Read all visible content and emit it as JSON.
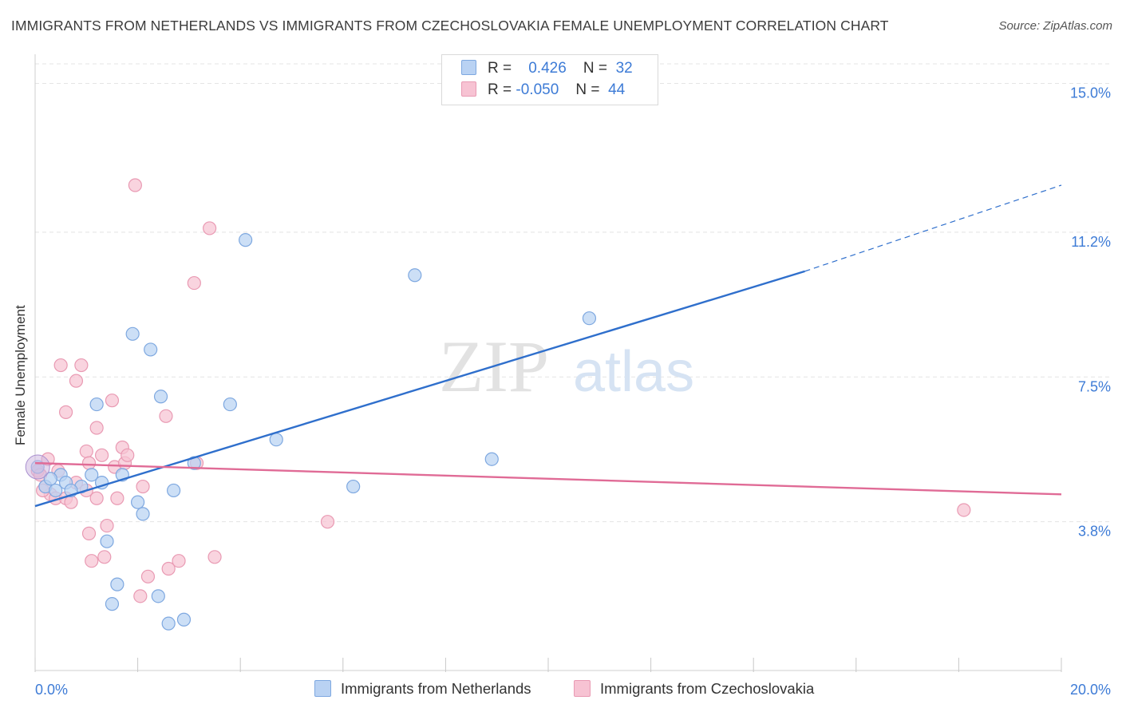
{
  "header": {
    "title": "IMMIGRANTS FROM NETHERLANDS VS IMMIGRANTS FROM CZECHOSLOVAKIA FEMALE UNEMPLOYMENT CORRELATION CHART",
    "source": "Source: ZipAtlas.com"
  },
  "watermark": {
    "zip": "ZIP",
    "atlas": "atlas"
  },
  "legend": {
    "r_label": "R =",
    "n_label": "N =",
    "rows": [
      {
        "r": "0.426",
        "n": "32",
        "color": "#a9c6ee"
      },
      {
        "r": "-0.050",
        "n": "44",
        "color": "#f4b8cb"
      }
    ]
  },
  "colors": {
    "netherlands_fill": "#b9d2f3",
    "netherlands_stroke": "#7ea8e0",
    "netherlands_line": "#2f6fcc",
    "czech_fill": "#f7c3d3",
    "czech_stroke": "#e99ab3",
    "czech_line": "#e06b96",
    "tick_text": "#3d7bd6",
    "grid": "#e4e4e4"
  },
  "chart_data": {
    "type": "scatter",
    "title": "IMMIGRANTS FROM NETHERLANDS VS IMMIGRANTS FROM CZECHOSLOVAKIA FEMALE UNEMPLOYMENT CORRELATION CHART",
    "xlabel": "",
    "ylabel": "Female Unemployment",
    "xlim": [
      0,
      20
    ],
    "ylim": [
      0,
      15.5
    ],
    "x_tick_labels": [
      {
        "value": 0,
        "label": "0.0%"
      },
      {
        "value": 20,
        "label": "20.0%"
      }
    ],
    "y_tick_labels": [
      {
        "value": 3.8,
        "label": "3.8%"
      },
      {
        "value": 7.5,
        "label": "7.5%"
      },
      {
        "value": 11.2,
        "label": "11.2%"
      },
      {
        "value": 15.0,
        "label": "15.0%"
      }
    ],
    "grid": "horizontal dashed",
    "legend_position": "top-center",
    "series": [
      {
        "name": "Immigrants from Netherlands",
        "points": [
          [
            0.05,
            5.2
          ],
          [
            0.2,
            4.7
          ],
          [
            0.4,
            4.6
          ],
          [
            0.5,
            5.0
          ],
          [
            0.6,
            4.8
          ],
          [
            0.9,
            4.7
          ],
          [
            1.1,
            5.0
          ],
          [
            1.2,
            6.8
          ],
          [
            1.3,
            4.8
          ],
          [
            1.4,
            3.3
          ],
          [
            1.6,
            2.2
          ],
          [
            1.5,
            1.7
          ],
          [
            1.7,
            5.0
          ],
          [
            1.9,
            8.6
          ],
          [
            2.0,
            4.3
          ],
          [
            2.1,
            4.0
          ],
          [
            2.25,
            8.2
          ],
          [
            2.4,
            1.9
          ],
          [
            2.45,
            7.0
          ],
          [
            2.6,
            1.2
          ],
          [
            2.7,
            4.6
          ],
          [
            2.9,
            1.3
          ],
          [
            3.1,
            5.3
          ],
          [
            3.8,
            6.8
          ],
          [
            4.1,
            11.0
          ],
          [
            4.7,
            5.9
          ],
          [
            6.2,
            4.7
          ],
          [
            7.4,
            10.1
          ],
          [
            8.9,
            5.4
          ],
          [
            10.8,
            9.0
          ],
          [
            0.3,
            4.9
          ],
          [
            0.7,
            4.6
          ]
        ],
        "trend": {
          "x": [
            0,
            15
          ],
          "y": [
            4.2,
            10.2
          ],
          "dashed_extension_to": [
            20,
            12.4
          ]
        }
      },
      {
        "name": "Immigrants from Czechoslovakia",
        "points": [
          [
            0.05,
            5.1
          ],
          [
            0.1,
            5.0
          ],
          [
            0.2,
            4.7
          ],
          [
            0.3,
            4.5
          ],
          [
            0.4,
            4.4
          ],
          [
            0.45,
            5.1
          ],
          [
            0.5,
            7.8
          ],
          [
            0.6,
            4.4
          ],
          [
            0.6,
            6.6
          ],
          [
            0.7,
            4.3
          ],
          [
            0.8,
            7.4
          ],
          [
            0.8,
            4.8
          ],
          [
            0.9,
            7.8
          ],
          [
            1.0,
            5.6
          ],
          [
            1.0,
            4.6
          ],
          [
            1.05,
            5.3
          ],
          [
            1.05,
            3.5
          ],
          [
            1.1,
            2.8
          ],
          [
            1.2,
            4.4
          ],
          [
            1.2,
            6.2
          ],
          [
            1.3,
            5.5
          ],
          [
            1.35,
            2.9
          ],
          [
            1.4,
            3.7
          ],
          [
            1.5,
            6.9
          ],
          [
            1.55,
            5.2
          ],
          [
            1.6,
            4.4
          ],
          [
            1.7,
            5.7
          ],
          [
            1.75,
            5.3
          ],
          [
            1.8,
            5.5
          ],
          [
            1.95,
            12.4
          ],
          [
            2.05,
            1.9
          ],
          [
            2.1,
            4.7
          ],
          [
            2.2,
            2.4
          ],
          [
            2.55,
            6.5
          ],
          [
            2.6,
            2.6
          ],
          [
            2.8,
            2.8
          ],
          [
            3.1,
            9.9
          ],
          [
            3.15,
            5.3
          ],
          [
            3.4,
            11.3
          ],
          [
            3.5,
            2.9
          ],
          [
            5.7,
            3.8
          ],
          [
            18.1,
            4.1
          ],
          [
            0.25,
            5.4
          ],
          [
            0.15,
            4.6
          ]
        ],
        "trend": {
          "x": [
            0,
            20
          ],
          "y": [
            5.3,
            4.5
          ]
        }
      }
    ]
  },
  "bottom_legend": [
    {
      "label": "Immigrants from Netherlands"
    },
    {
      "label": "Immigrants from Czechoslovakia"
    }
  ]
}
